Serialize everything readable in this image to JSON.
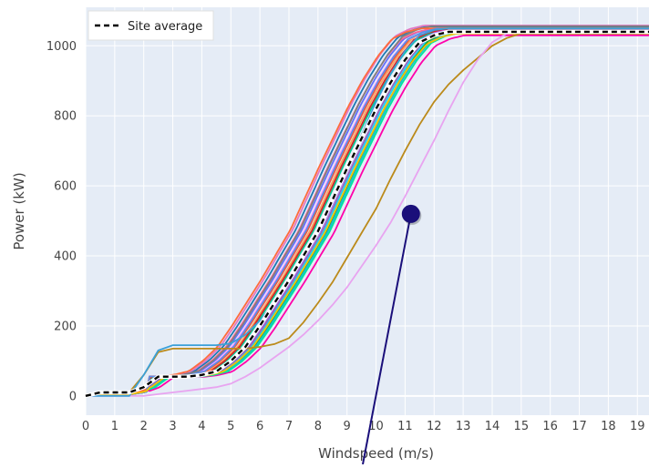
{
  "chart_data": {
    "type": "line",
    "xlabel": "Windspeed (m/s)",
    "ylabel": "Power (kW)",
    "xlim": [
      0,
      19.4
    ],
    "ylim": [
      -55,
      1110
    ],
    "x_ticks": [
      0,
      1,
      2,
      3,
      4,
      5,
      6,
      7,
      8,
      9,
      10,
      11,
      12,
      13,
      14,
      15,
      16,
      17,
      18,
      19
    ],
    "y_ticks": [
      0,
      200,
      400,
      600,
      800,
      1000
    ],
    "grid": true,
    "plot_background": "#e5ecf6",
    "legend": {
      "position": "top-left",
      "entries": [
        {
          "label": "Site average",
          "style": "dashed",
          "color": "#000000"
        }
      ]
    },
    "average_series": {
      "name": "Site average",
      "color": "#000000",
      "x": [
        0,
        0.5,
        1,
        1.5,
        2,
        2.5,
        3,
        3.5,
        4,
        4.5,
        5,
        5.5,
        6,
        6.5,
        7,
        7.5,
        8,
        8.5,
        9,
        9.5,
        10,
        10.5,
        11,
        11.5,
        12,
        12.5,
        13,
        14,
        15,
        16,
        17,
        18,
        19.4
      ],
      "y": [
        0,
        10,
        10,
        10,
        25,
        55,
        55,
        55,
        60,
        70,
        100,
        140,
        200,
        265,
        330,
        400,
        470,
        560,
        650,
        735,
        820,
        895,
        960,
        1010,
        1030,
        1040,
        1040,
        1040,
        1040,
        1040,
        1040,
        1040,
        1040
      ]
    },
    "turbine_curves": [
      {
        "color": "#636efa",
        "shift": -0.55,
        "slope": 1.0,
        "cap": 1050
      },
      {
        "color": "#ef553b",
        "shift": -0.35,
        "slope": 1.0,
        "cap": 1048
      },
      {
        "color": "#00cc96",
        "shift": -0.15,
        "slope": 1.0,
        "cap": 1045
      },
      {
        "color": "#ab63fa",
        "shift": 0.1,
        "slope": 1.0,
        "cap": 1050
      },
      {
        "color": "#ffa15a",
        "shift": -0.25,
        "slope": 1.0,
        "cap": 1052
      },
      {
        "color": "#19d3f3",
        "shift": 0.2,
        "slope": 1.0,
        "cap": 1040
      },
      {
        "color": "#ff6692",
        "shift": -0.65,
        "slope": 1.0,
        "cap": 1048
      },
      {
        "color": "#b6e880",
        "shift": 0.05,
        "slope": 1.0,
        "cap": 1042
      },
      {
        "color": "#ff97ff",
        "shift": -0.45,
        "slope": 1.0,
        "cap": 1046
      },
      {
        "color": "#fecb52",
        "shift": 0.0,
        "slope": 1.0,
        "cap": 1036
      },
      {
        "color": "#1f77b4",
        "shift": -0.75,
        "slope": 1.0,
        "cap": 1055
      },
      {
        "color": "#2ca02c",
        "shift": 0.3,
        "slope": 1.0,
        "cap": 1044
      },
      {
        "color": "#d62728",
        "shift": -0.2,
        "slope": 1.0,
        "cap": 1047
      },
      {
        "color": "#9467bd",
        "shift": 0.15,
        "slope": 1.0,
        "cap": 1043
      },
      {
        "color": "#e377c2",
        "shift": -0.85,
        "slope": 1.0,
        "cap": 1058
      },
      {
        "color": "#7f7f7f",
        "shift": -0.6,
        "slope": 1.0,
        "cap": 1056
      },
      {
        "color": "#17becf",
        "shift": 0.35,
        "slope": 1.0,
        "cap": 1041
      },
      {
        "color": "#ff00aa",
        "shift": 0.55,
        "slope": 1.0,
        "cap": 1030
      },
      {
        "color": "#00e5a0",
        "shift": 0.4,
        "slope": 1.0,
        "cap": 1038
      },
      {
        "color": "#fe6b3b",
        "shift": -0.95,
        "slope": 1.0,
        "cap": 1050
      },
      {
        "color": "#5a8ee8",
        "shift": -0.4,
        "slope": 1.0,
        "cap": 1049
      },
      {
        "color": "#f2c200",
        "shift": 0.25,
        "slope": 1.0,
        "cap": 1035
      }
    ],
    "outlier_curves": [
      {
        "color": "#bb8a1a",
        "x": [
          0,
          0.5,
          1,
          1.5,
          2,
          2.5,
          3,
          3.5,
          4,
          4.5,
          5,
          5.5,
          6,
          6.5,
          7,
          7.5,
          8,
          8.5,
          9,
          9.5,
          10,
          10.5,
          11,
          11.5,
          12,
          12.5,
          13,
          13.5,
          14,
          14.5,
          15,
          16,
          17,
          18,
          19.4
        ],
        "y": [
          0,
          10,
          10,
          10,
          60,
          125,
          135,
          135,
          135,
          135,
          135,
          135,
          140,
          148,
          165,
          210,
          265,
          325,
          395,
          465,
          535,
          620,
          700,
          775,
          840,
          890,
          930,
          965,
          1000,
          1022,
          1035,
          1035,
          1035,
          1035,
          1035
        ]
      },
      {
        "color": "#e8a4f0",
        "x": [
          0,
          0.5,
          1,
          1.5,
          2,
          2.5,
          3,
          3.5,
          4,
          4.5,
          5,
          5.5,
          6,
          6.5,
          7,
          7.5,
          8,
          8.5,
          9,
          9.5,
          10,
          10.5,
          11,
          11.5,
          12,
          12.5,
          13,
          13.5,
          14,
          14.5,
          15,
          16,
          17,
          18,
          19.4
        ],
        "y": [
          0,
          0,
          0,
          0,
          0,
          5,
          10,
          15,
          20,
          25,
          35,
          55,
          80,
          110,
          140,
          175,
          215,
          260,
          310,
          370,
          430,
          495,
          570,
          650,
          730,
          815,
          895,
          960,
          1010,
          1035,
          1040,
          1040,
          1040,
          1040,
          1040
        ]
      },
      {
        "color": "#3aa0d8",
        "x": [
          0,
          0.5,
          1,
          1.5,
          2,
          2.5,
          3,
          3.5,
          4,
          4.5,
          5,
          5.5,
          6,
          6.5,
          7,
          7.5,
          8,
          8.5,
          9,
          9.5,
          10,
          10.5,
          11,
          11.5,
          12,
          12.5,
          13,
          14,
          15,
          16,
          17,
          18,
          19.4
        ],
        "y": [
          0,
          0,
          0,
          0,
          60,
          130,
          145,
          145,
          145,
          145,
          150,
          175,
          215,
          265,
          325,
          395,
          475,
          560,
          650,
          745,
          840,
          920,
          985,
          1030,
          1045,
          1050,
          1050,
          1050,
          1050,
          1050,
          1050,
          1050,
          1050
        ]
      }
    ],
    "annotation": {
      "x": 11.2,
      "y": 520,
      "color": "#1a0f7a"
    }
  }
}
